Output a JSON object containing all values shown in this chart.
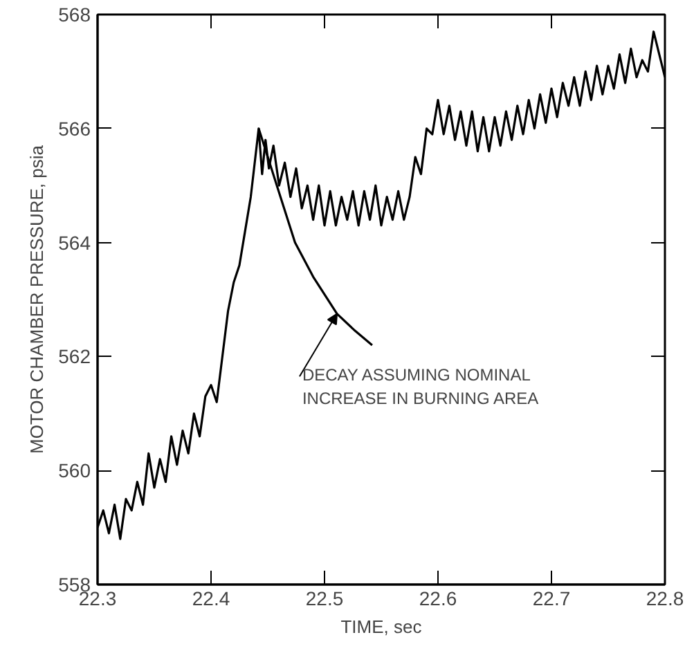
{
  "chart_data": {
    "type": "line",
    "xlabel": "TIME, sec",
    "ylabel": "MOTOR CHAMBER PRESSURE, psia",
    "xlim": [
      22.3,
      22.8
    ],
    "ylim": [
      558,
      568
    ],
    "xticks": [
      22.3,
      22.4,
      22.5,
      22.6,
      22.7,
      22.8
    ],
    "yticks": [
      558,
      560,
      562,
      564,
      566,
      568
    ],
    "grid": false,
    "line_style": "solid",
    "series": [
      {
        "color": "#000000",
        "x": [
          22.3,
          22.305,
          22.31,
          22.315,
          22.32,
          22.325,
          22.33,
          22.335,
          22.34,
          22.345,
          22.35,
          22.355,
          22.36,
          22.365,
          22.37,
          22.375,
          22.38,
          22.385,
          22.39,
          22.395,
          22.4,
          22.405,
          22.41,
          22.415,
          22.42,
          22.425,
          22.43,
          22.435,
          22.442,
          22.445,
          22.448,
          22.451,
          22.455,
          22.46,
          22.465,
          22.47,
          22.475,
          22.48,
          22.485,
          22.49,
          22.495,
          22.5,
          22.505,
          22.51,
          22.515,
          22.52,
          22.525,
          22.53,
          22.535,
          22.54,
          22.545,
          22.55,
          22.555,
          22.56,
          22.565,
          22.57,
          22.575,
          22.58,
          22.585,
          22.59,
          22.595,
          22.6,
          22.605,
          22.61,
          22.615,
          22.62,
          22.625,
          22.63,
          22.635,
          22.64,
          22.645,
          22.65,
          22.655,
          22.66,
          22.665,
          22.67,
          22.675,
          22.68,
          22.685,
          22.69,
          22.695,
          22.7,
          22.705,
          22.71,
          22.715,
          22.72,
          22.725,
          22.73,
          22.735,
          22.74,
          22.745,
          22.75,
          22.755,
          22.76,
          22.765,
          22.77,
          22.775,
          22.78,
          22.785,
          22.79,
          22.795,
          22.8
        ],
        "values": [
          559.0,
          559.3,
          558.9,
          559.4,
          558.8,
          559.5,
          559.3,
          559.8,
          559.4,
          560.3,
          559.7,
          560.2,
          559.8,
          560.6,
          560.1,
          560.7,
          560.3,
          561.0,
          560.6,
          561.3,
          561.5,
          561.2,
          562.0,
          562.8,
          563.3,
          563.6,
          564.2,
          564.8,
          566.0,
          565.2,
          565.8,
          565.3,
          565.7,
          565.0,
          565.4,
          564.8,
          565.3,
          564.6,
          565.0,
          564.4,
          565.0,
          564.3,
          564.9,
          564.3,
          564.8,
          564.4,
          564.9,
          564.3,
          564.9,
          564.4,
          565.0,
          564.3,
          564.8,
          564.4,
          564.9,
          564.4,
          564.8,
          565.5,
          565.2,
          566.0,
          565.9,
          566.5,
          565.9,
          566.4,
          565.8,
          566.3,
          565.7,
          566.3,
          565.6,
          566.2,
          565.6,
          566.2,
          565.7,
          566.3,
          565.8,
          566.4,
          565.9,
          566.5,
          566.0,
          566.6,
          566.1,
          566.7,
          566.2,
          566.8,
          566.4,
          566.9,
          566.4,
          567.0,
          566.5,
          567.1,
          566.6,
          567.1,
          566.7,
          567.3,
          566.8,
          567.4,
          566.9,
          567.2,
          567.0,
          567.7,
          567.3,
          566.9
        ]
      },
      {
        "color": "#000000",
        "x": [
          22.442,
          22.458,
          22.474,
          22.49,
          22.511,
          22.527,
          22.542
        ],
        "values": [
          566.0,
          565.0,
          564.0,
          563.4,
          562.75,
          562.45,
          562.2
        ]
      }
    ],
    "annotations": [
      {
        "text": "DECAY ASSUMING NOMINAL\nINCREASE IN BURNING AREA",
        "x": 22.511,
        "y": 562.75
      }
    ]
  }
}
